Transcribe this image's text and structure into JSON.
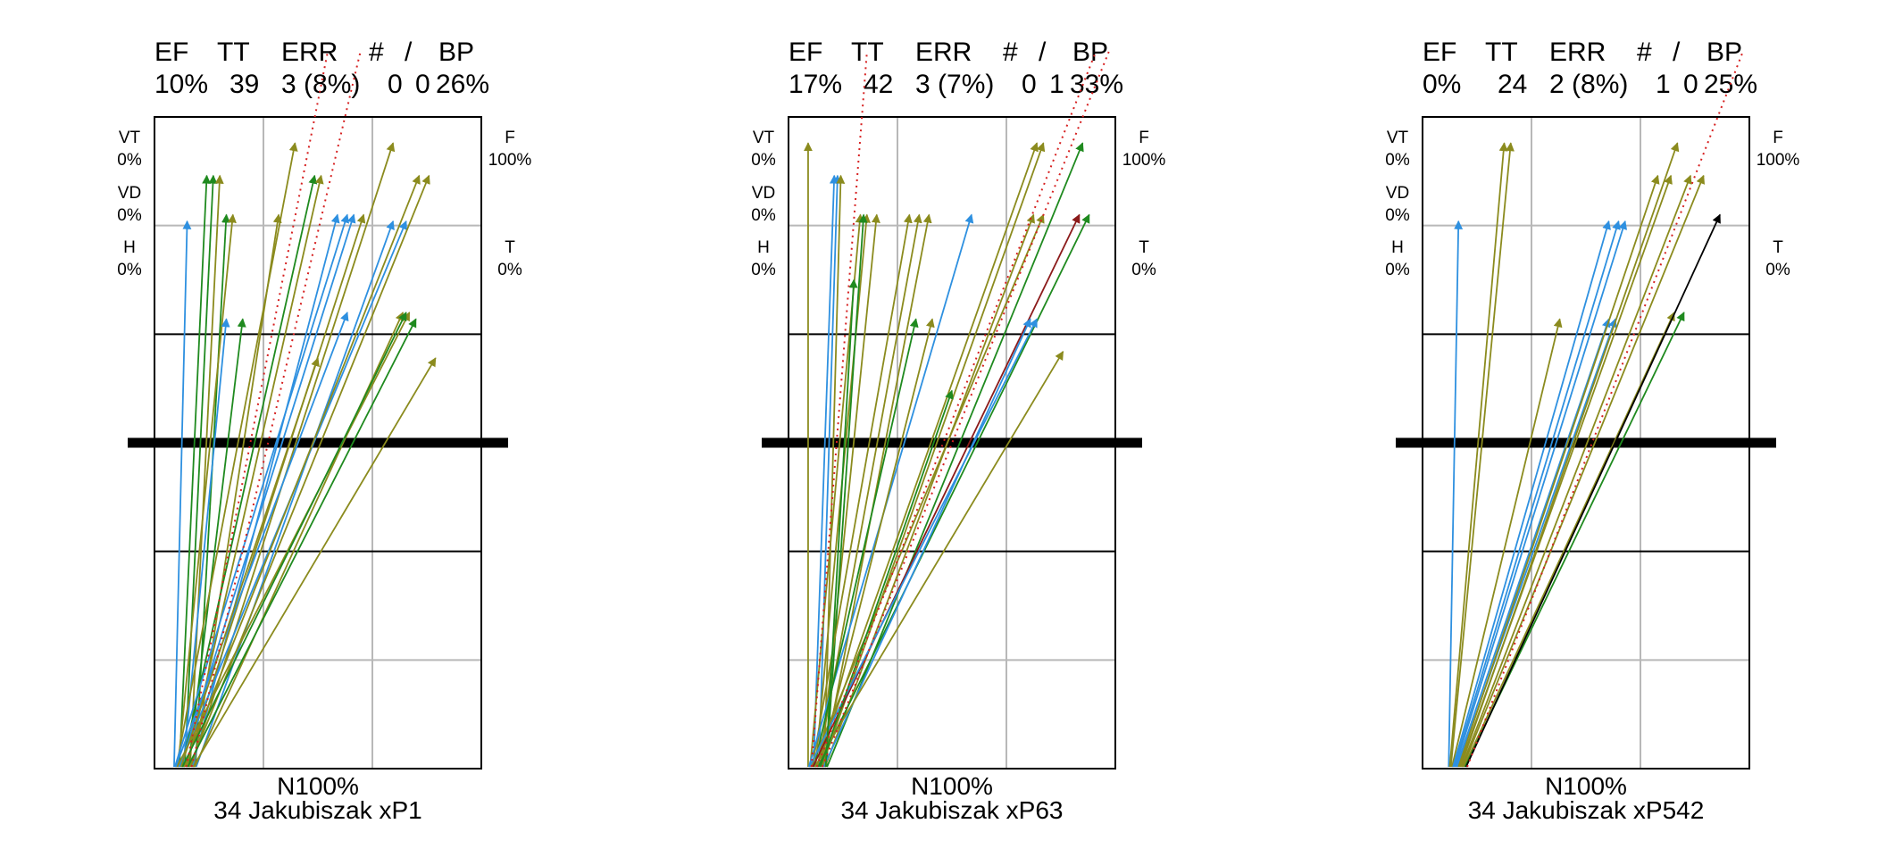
{
  "header_labels": [
    "EF",
    "TT",
    "ERR",
    "#",
    "/",
    "BP"
  ],
  "side_labels": {
    "left": [
      {
        "name": "VT",
        "value": "0%"
      },
      {
        "name": "VD",
        "value": "0%"
      },
      {
        "name": "H",
        "value": "0%"
      }
    ],
    "right": [
      {
        "name": "F",
        "value": "100%"
      },
      {
        "name": "T",
        "value": "0%"
      }
    ]
  },
  "colors": {
    "olive": "#8b8b1e",
    "green": "#1f8a1f",
    "blue": "#2e90e0",
    "red": "#d62020",
    "darkred": "#8b1a1a",
    "black": "#000000",
    "grid": "#b8b8b8"
  },
  "chart_data": [
    {
      "type": "vector-field",
      "stats": {
        "EF": "10%",
        "TT": "39",
        "ERR": "3 (8%)",
        "#": "0",
        "/": "0",
        "BP": "26%"
      },
      "footer_line1": "N100%",
      "footer_line2": "34 Jakubiszak  xP1",
      "origin_x": [
        0.06,
        0.13
      ],
      "vectors": [
        {
          "c": "blue",
          "x": 0.1,
          "y": 0.84
        },
        {
          "c": "green",
          "x": 0.16,
          "y": 0.91
        },
        {
          "c": "green",
          "x": 0.18,
          "y": 0.91
        },
        {
          "c": "olive",
          "x": 0.2,
          "y": 0.91
        },
        {
          "c": "green",
          "x": 0.22,
          "y": 0.85
        },
        {
          "c": "olive",
          "x": 0.24,
          "y": 0.85
        },
        {
          "c": "blue",
          "x": 0.22,
          "y": 0.69
        },
        {
          "c": "green",
          "x": 0.27,
          "y": 0.69
        },
        {
          "c": "olive",
          "x": 0.38,
          "y": 0.85
        },
        {
          "c": "olive",
          "x": 0.43,
          "y": 0.96
        },
        {
          "c": "green",
          "x": 0.49,
          "y": 0.91
        },
        {
          "c": "olive",
          "x": 0.51,
          "y": 0.91
        },
        {
          "c": "blue",
          "x": 0.56,
          "y": 0.85
        },
        {
          "c": "blue",
          "x": 0.59,
          "y": 0.85
        },
        {
          "c": "blue",
          "x": 0.61,
          "y": 0.85
        },
        {
          "c": "olive",
          "x": 0.64,
          "y": 0.85
        },
        {
          "c": "olive",
          "x": 0.73,
          "y": 0.96
        },
        {
          "c": "blue",
          "x": 0.73,
          "y": 0.84
        },
        {
          "c": "blue",
          "x": 0.77,
          "y": 0.84
        },
        {
          "c": "olive",
          "x": 0.81,
          "y": 0.91
        },
        {
          "c": "olive",
          "x": 0.84,
          "y": 0.91
        },
        {
          "c": "olive",
          "x": 0.76,
          "y": 0.7
        },
        {
          "c": "olive",
          "x": 0.78,
          "y": 0.7
        },
        {
          "c": "green",
          "x": 0.77,
          "y": 0.7
        },
        {
          "c": "green",
          "x": 0.8,
          "y": 0.69
        },
        {
          "c": "olive",
          "x": 0.86,
          "y": 0.63
        },
        {
          "c": "blue",
          "x": 0.59,
          "y": 0.7
        },
        {
          "c": "olive",
          "x": 0.5,
          "y": 0.63
        },
        {
          "c": "red",
          "x": 0.53,
          "y": 1.1,
          "dotted": true
        },
        {
          "c": "red",
          "x": 0.63,
          "y": 1.1,
          "dotted": true
        }
      ]
    },
    {
      "type": "vector-field",
      "stats": {
        "EF": "17%",
        "TT": "42",
        "ERR": "3 (7%)",
        "#": "0",
        "/": "1",
        "BP": "33%"
      },
      "footer_line1": "N100%",
      "footer_line2": "34 Jakubiszak  xP63",
      "origin_x": [
        0.06,
        0.12
      ],
      "vectors": [
        {
          "c": "olive",
          "x": 0.06,
          "y": 0.96
        },
        {
          "c": "blue",
          "x": 0.14,
          "y": 0.91
        },
        {
          "c": "blue",
          "x": 0.15,
          "y": 0.91
        },
        {
          "c": "olive",
          "x": 0.16,
          "y": 0.91
        },
        {
          "c": "olive",
          "x": 0.22,
          "y": 0.85
        },
        {
          "c": "olive",
          "x": 0.24,
          "y": 0.85
        },
        {
          "c": "olive",
          "x": 0.27,
          "y": 0.85
        },
        {
          "c": "green",
          "x": 0.23,
          "y": 0.85
        },
        {
          "c": "olive",
          "x": 0.37,
          "y": 0.85
        },
        {
          "c": "olive",
          "x": 0.4,
          "y": 0.85
        },
        {
          "c": "olive",
          "x": 0.43,
          "y": 0.85
        },
        {
          "c": "blue",
          "x": 0.56,
          "y": 0.85
        },
        {
          "c": "green",
          "x": 0.39,
          "y": 0.69
        },
        {
          "c": "olive",
          "x": 0.44,
          "y": 0.69
        },
        {
          "c": "olive",
          "x": 0.75,
          "y": 0.85
        },
        {
          "c": "olive",
          "x": 0.78,
          "y": 0.85
        },
        {
          "c": "olive",
          "x": 0.76,
          "y": 0.96
        },
        {
          "c": "olive",
          "x": 0.78,
          "y": 0.96
        },
        {
          "c": "green",
          "x": 0.9,
          "y": 0.96
        },
        {
          "c": "darkred",
          "x": 0.89,
          "y": 0.85
        },
        {
          "c": "green",
          "x": 0.92,
          "y": 0.85
        },
        {
          "c": "blue",
          "x": 0.74,
          "y": 0.69
        },
        {
          "c": "blue",
          "x": 0.76,
          "y": 0.69
        },
        {
          "c": "olive",
          "x": 0.84,
          "y": 0.64
        },
        {
          "c": "green",
          "x": 0.5,
          "y": 0.58
        },
        {
          "c": "green",
          "x": 0.2,
          "y": 0.75
        },
        {
          "c": "red",
          "x": 0.24,
          "y": 1.1,
          "dotted": true
        },
        {
          "c": "red",
          "x": 0.94,
          "y": 1.1,
          "dotted": true
        },
        {
          "c": "red",
          "x": 0.98,
          "y": 1.1,
          "dotted": true
        }
      ]
    },
    {
      "type": "vector-field",
      "stats": {
        "EF": "0%",
        "TT": "24",
        "ERR": "2 (8%)",
        "#": "1",
        "/": "0",
        "BP": "25%"
      },
      "footer_line1": "N100%",
      "footer_line2": "34 Jakubiszak  xP542",
      "origin_x": [
        0.08,
        0.14
      ],
      "vectors": [
        {
          "c": "blue",
          "x": 0.11,
          "y": 0.84
        },
        {
          "c": "olive",
          "x": 0.25,
          "y": 0.96
        },
        {
          "c": "olive",
          "x": 0.27,
          "y": 0.96
        },
        {
          "c": "olive",
          "x": 0.42,
          "y": 0.69
        },
        {
          "c": "blue",
          "x": 0.57,
          "y": 0.84
        },
        {
          "c": "blue",
          "x": 0.6,
          "y": 0.84
        },
        {
          "c": "blue",
          "x": 0.62,
          "y": 0.84
        },
        {
          "c": "blue",
          "x": 0.57,
          "y": 0.69
        },
        {
          "c": "blue",
          "x": 0.59,
          "y": 0.69
        },
        {
          "c": "olive",
          "x": 0.72,
          "y": 0.91
        },
        {
          "c": "olive",
          "x": 0.76,
          "y": 0.91
        },
        {
          "c": "olive",
          "x": 0.78,
          "y": 0.96
        },
        {
          "c": "olive",
          "x": 0.82,
          "y": 0.91
        },
        {
          "c": "olive",
          "x": 0.86,
          "y": 0.91
        },
        {
          "c": "olive",
          "x": 0.77,
          "y": 0.7
        },
        {
          "c": "green",
          "x": 0.8,
          "y": 0.7
        },
        {
          "c": "black",
          "x": 0.91,
          "y": 0.85
        },
        {
          "c": "red",
          "x": 0.98,
          "y": 1.1,
          "dotted": true
        }
      ]
    }
  ]
}
